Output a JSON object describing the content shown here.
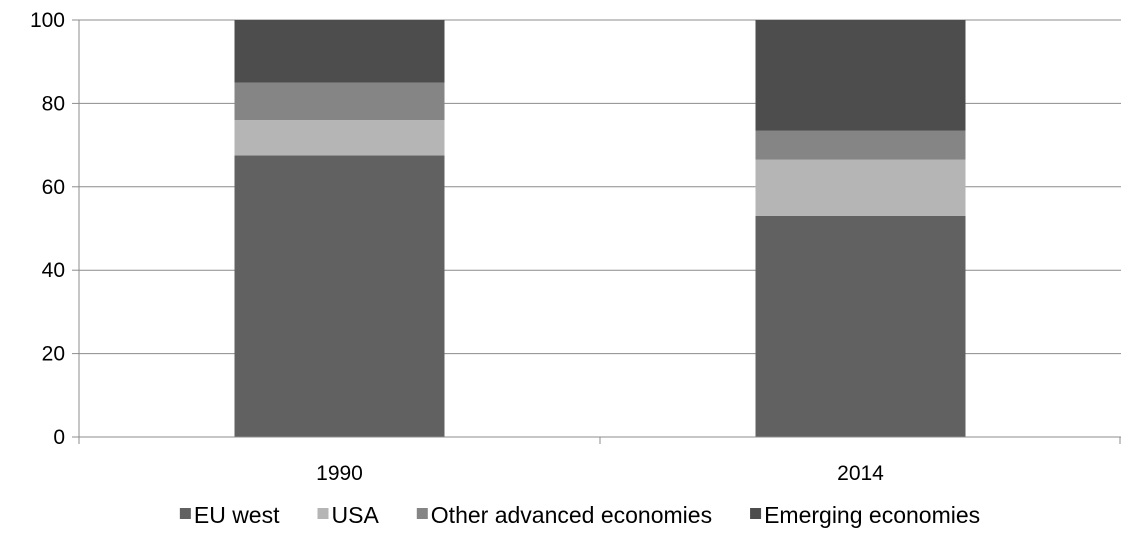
{
  "chart_data": {
    "type": "bar",
    "stacked": true,
    "categories": [
      "1990",
      "2014"
    ],
    "series": [
      {
        "name": "EU west",
        "values": [
          67.5,
          53
        ],
        "color": "#616161"
      },
      {
        "name": "USA",
        "values": [
          8.5,
          13.5
        ],
        "color": "#b5b5b5"
      },
      {
        "name": "Other advanced economies",
        "values": [
          9,
          7
        ],
        "color": "#858585"
      },
      {
        "name": "Emerging economies",
        "values": [
          15,
          26.5
        ],
        "color": "#4d4d4d"
      }
    ],
    "title": "",
    "xlabel": "",
    "ylabel": "",
    "ylim": [
      0,
      100
    ],
    "yticks": [
      "0",
      "20",
      "40",
      "60",
      "80",
      "100"
    ],
    "grid": true,
    "legend_position": "bottom"
  }
}
